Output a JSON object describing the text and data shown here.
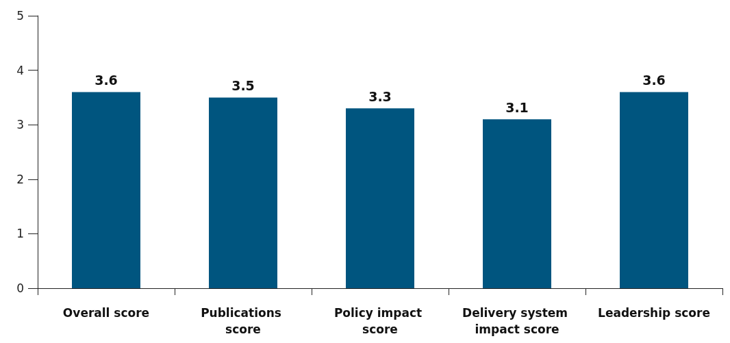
{
  "chart_data": {
    "type": "bar",
    "categories": [
      "Overall score",
      "Publications score",
      "Policy impact score",
      "Delivery system impact score",
      "Leadership score"
    ],
    "values": [
      3.6,
      3.5,
      3.3,
      3.1,
      3.6
    ],
    "color": "#00557f",
    "ylim": [
      0,
      5
    ],
    "yticks": [
      0,
      1,
      2,
      3,
      4,
      5
    ],
    "grid": false,
    "data_labels": true
  }
}
